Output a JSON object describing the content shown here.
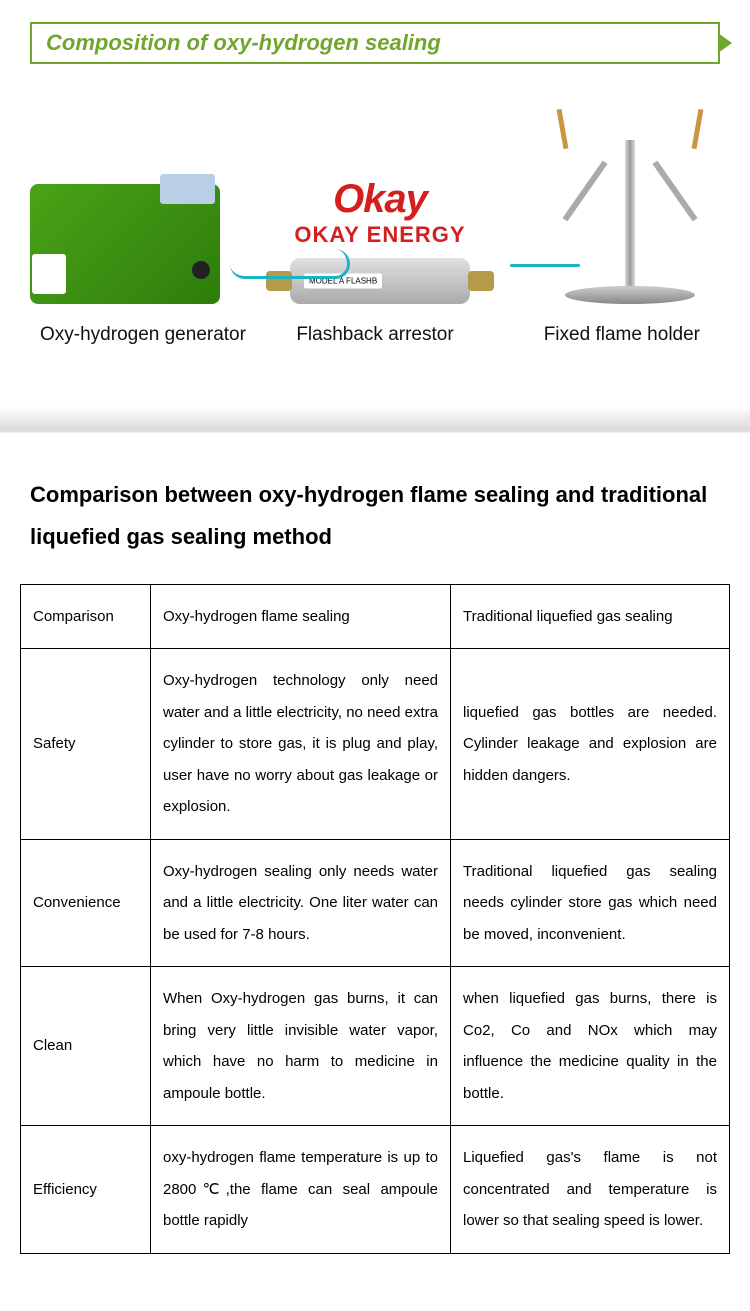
{
  "section_title": "Composition of oxy-hydrogen sealing",
  "brand": {
    "main": "Okay",
    "sub": "OKAY ENERGY",
    "color": "#d41f1f"
  },
  "arrestor_tag": "MODEL A  FLASHB",
  "equipment_labels": {
    "left": "Oxy-hydrogen generator",
    "center": "Flashback arrestor",
    "right": "Fixed flame holder"
  },
  "comparison_title": "Comparison between oxy-hydrogen flame sealing and traditional liquefied gas sealing method",
  "table": {
    "columns": [
      "Comparison",
      "Oxy-hydrogen flame sealing",
      "Traditional liquefied gas sealing"
    ],
    "rows": [
      [
        "Safety",
        "Oxy-hydrogen technology only need water and a little electricity, no need extra cylinder to store gas, it is plug and play, user have no worry about gas leakage or explosion.",
        "liquefied gas bottles are needed. Cylinder leakage and   explosion are hidden dangers."
      ],
      [
        "Convenience",
        "Oxy-hydrogen sealing only needs water and a little electricity. One liter water can be used for 7-8 hours.",
        "Traditional liquefied gas sealing needs cylinder store gas which need be moved, inconvenient."
      ],
      [
        "Clean",
        "When Oxy-hydrogen gas burns, it can bring very little invisible water vapor, which have no harm to medicine in ampoule bottle.",
        "when liquefied gas burns, there is Co2, Co and NOx which may influence the medicine quality in the bottle."
      ],
      [
        "Efficiency",
        "oxy-hydrogen flame temperature is up to 2800℃,the flame can seal ampoule bottle rapidly",
        "Liquefied gas's flame is not concentrated and temperature is lower so that sealing speed is lower."
      ]
    ]
  },
  "colors": {
    "accent_green": "#71a62e",
    "wire": "#19b3c9",
    "text": "#000000",
    "border": "#000000"
  }
}
